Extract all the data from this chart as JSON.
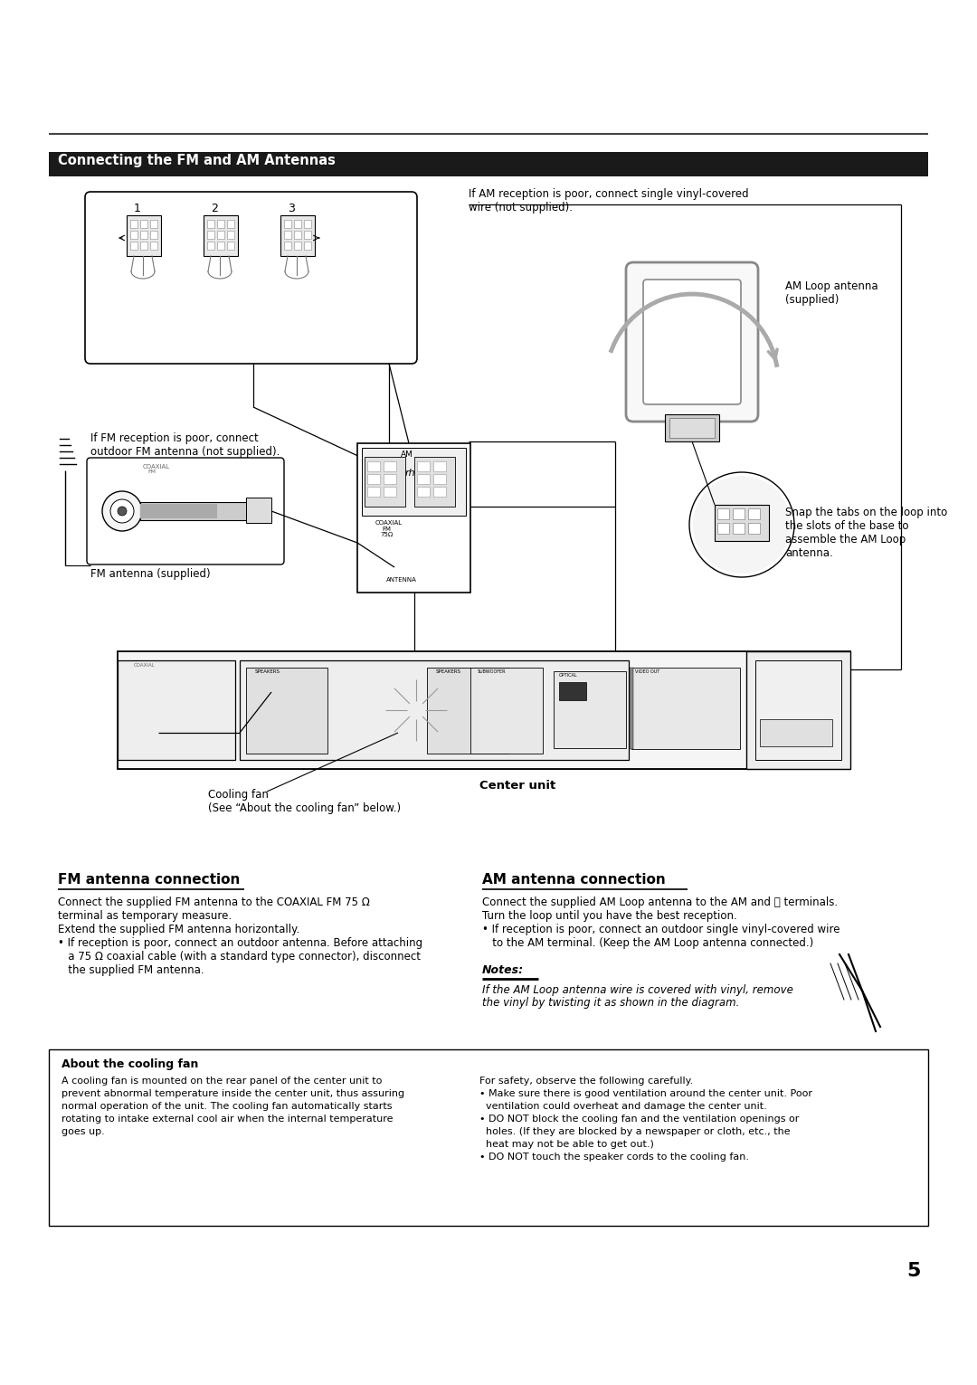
{
  "page_bg": "#ffffff",
  "header_bg": "#1a1a1a",
  "header_text": "Connecting the FM and AM Antennas",
  "header_text_color": "#ffffff",
  "page_number": "5",
  "section_title_fm": "FM antenna connection",
  "section_title_am": "AM antenna connection",
  "fm_body_lines": [
    "Connect the supplied FM antenna to the COAXIAL FM 75 Ω",
    "terminal as temporary measure.",
    "Extend the supplied FM antenna horizontally.",
    "• If reception is poor, connect an outdoor antenna. Before attaching",
    "   a 75 Ω coaxial cable (with a standard type connector), disconnect",
    "   the supplied FM antenna."
  ],
  "am_body_lines": [
    "Connect the supplied AM Loop antenna to the AM and ⌵ terminals.",
    "Turn the loop until you have the best reception.",
    "• If reception is poor, connect an outdoor single vinyl-covered wire",
    "   to the AM terminal. (Keep the AM Loop antenna connected.)"
  ],
  "notes_title": "Notes:",
  "notes_body_lines": [
    "If the AM Loop antenna wire is covered with vinyl, remove",
    "the vinyl by twisting it as shown in the diagram."
  ],
  "cooling_box_title": "About the cooling fan",
  "cooling_box_left_lines": [
    "A cooling fan is mounted on the rear panel of the center unit to",
    "prevent abnormal temperature inside the center unit, thus assuring",
    "normal operation of the unit. The cooling fan automatically starts",
    "rotating to intake external cool air when the internal temperature",
    "goes up."
  ],
  "cooling_box_right_lines": [
    "For safety, observe the following carefully.",
    "• Make sure there is good ventilation around the center unit. Poor",
    "  ventilation could overheat and damage the center unit.",
    "• DO NOT block the cooling fan and the ventilation openings or",
    "  holes. (If they are blocked by a newspaper or cloth, etc., the",
    "  heat may not be able to get out.)",
    "• DO NOT touch the speaker cords to the cooling fan."
  ],
  "am_reception_note": "If AM reception is poor, connect single vinyl-covered\nwire (not supplied).",
  "am_loop_label": "AM Loop antenna\n(supplied)",
  "snap_tabs_label": "Snap the tabs on the loop into\nthe slots of the base to\nassemble the AM Loop\nantenna.",
  "fm_antenna_label": "FM antenna (supplied)",
  "fm_reception_note": "If FM reception is poor, connect\noutdoor FM antenna (not supplied).",
  "cooling_fan_label": "Cooling fan\n(See “About the cooling fan” below.)",
  "center_unit_label": "Center unit"
}
